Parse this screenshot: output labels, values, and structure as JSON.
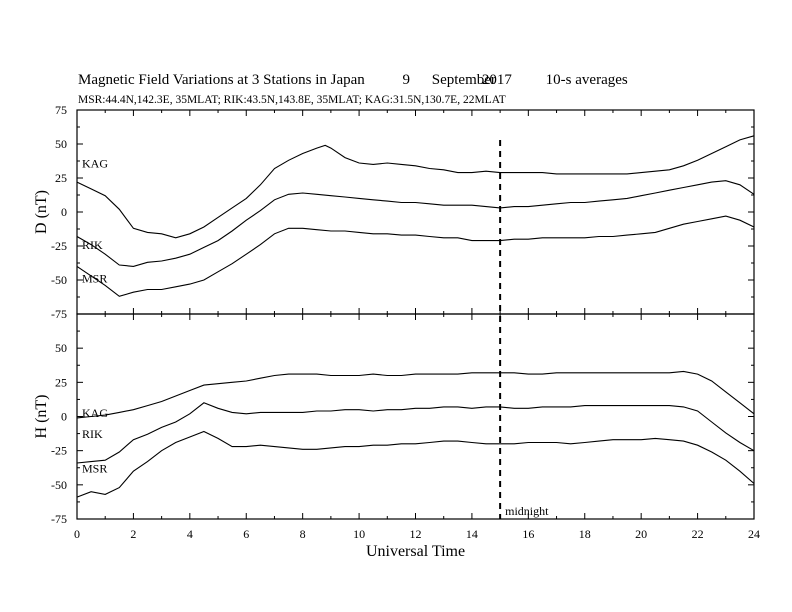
{
  "header": {
    "title_main": "Magnetic Field Variations at 3 Stations in Japan",
    "title_day": "9",
    "title_month": "September",
    "title_year": "2017",
    "title_avg": "10-s averages",
    "stations_line": "MSR:44.4N,142.3E, 35MLAT;  RIK:43.5N,143.8E, 35MLAT;  KAG:31.5N,130.7E, 22MLAT"
  },
  "chart_data": [
    {
      "type": "line",
      "ylabel": "D (nT)",
      "ylim": [
        -75,
        75
      ],
      "yticks": [
        "75",
        "50",
        "25",
        "0",
        "-25",
        "-50",
        "-75"
      ],
      "xlim": [
        0,
        24
      ],
      "series": [
        {
          "name": "KAG",
          "x": [
            0,
            0.5,
            1,
            1.5,
            2,
            2.5,
            3,
            3.5,
            4,
            4.5,
            5,
            5.5,
            6,
            6.5,
            7,
            7.5,
            8,
            8.5,
            8.8,
            9,
            9.5,
            10,
            10.5,
            11,
            11.5,
            12,
            12.5,
            13,
            13.5,
            14,
            14.5,
            15,
            15.5,
            16,
            16.5,
            17,
            17.5,
            18,
            18.5,
            19,
            19.5,
            20,
            20.5,
            21,
            21.5,
            22,
            22.5,
            23,
            23.5,
            24
          ],
          "values": [
            22,
            17,
            12,
            2,
            -12,
            -15,
            -16,
            -19,
            -16,
            -11,
            -4,
            3,
            10,
            20,
            32,
            38,
            43,
            47,
            49,
            47,
            40,
            36,
            35,
            36,
            35,
            34,
            32,
            31,
            29,
            29,
            30,
            29,
            29,
            29,
            29,
            28,
            28,
            28,
            28,
            28,
            28,
            29,
            30,
            31,
            34,
            38,
            43,
            48,
            53,
            56
          ]
        },
        {
          "name": "RIK",
          "x": [
            0,
            0.5,
            1,
            1.5,
            2,
            2.5,
            3,
            3.5,
            4,
            4.5,
            5,
            5.5,
            6,
            6.5,
            7,
            7.5,
            8,
            8.5,
            9,
            9.5,
            10,
            10.5,
            11,
            11.5,
            12,
            12.5,
            13,
            13.5,
            14,
            14.5,
            15,
            15.5,
            16,
            16.5,
            17,
            17.5,
            18,
            18.5,
            19,
            19.5,
            20,
            20.5,
            21,
            21.5,
            22,
            22.5,
            23,
            23.5,
            24
          ],
          "values": [
            -18,
            -24,
            -31,
            -39,
            -40,
            -37,
            -36,
            -34,
            -31,
            -26,
            -21,
            -14,
            -6,
            1,
            9,
            13,
            14,
            13,
            12,
            11,
            10,
            9,
            8,
            7,
            7,
            6,
            5,
            5,
            5,
            4,
            3,
            4,
            4,
            5,
            6,
            7,
            7,
            8,
            9,
            10,
            12,
            14,
            16,
            18,
            20,
            22,
            23,
            20,
            13
          ]
        },
        {
          "name": "MSR",
          "x": [
            0,
            0.5,
            1,
            1.5,
            2,
            2.5,
            3,
            3.5,
            4,
            4.5,
            5,
            5.5,
            6,
            6.5,
            7,
            7.5,
            8,
            8.5,
            9,
            9.5,
            10,
            10.5,
            11,
            11.5,
            12,
            12.5,
            13,
            13.5,
            14,
            14.5,
            15,
            15.5,
            16,
            16.5,
            17,
            17.5,
            18,
            18.5,
            19,
            19.5,
            20,
            20.5,
            21,
            21.5,
            22,
            22.5,
            23,
            23.5,
            24
          ],
          "values": [
            -40,
            -47,
            -54,
            -62,
            -59,
            -57,
            -57,
            -55,
            -53,
            -50,
            -44,
            -38,
            -31,
            -24,
            -16,
            -12,
            -12,
            -13,
            -14,
            -14,
            -15,
            -16,
            -16,
            -17,
            -17,
            -18,
            -19,
            -19,
            -21,
            -21,
            -21,
            -20,
            -20,
            -19,
            -19,
            -19,
            -19,
            -18,
            -18,
            -17,
            -16,
            -15,
            -12,
            -9,
            -7,
            -5,
            -3,
            -6,
            -11
          ]
        }
      ]
    },
    {
      "type": "line",
      "ylabel": "H (nT)",
      "ylim": [
        -75,
        75
      ],
      "yticks": [
        "75",
        "50",
        "25",
        "0",
        "-25",
        "-50",
        "-75"
      ],
      "xlim": [
        0,
        24
      ],
      "xlabel": "Universal Time",
      "xticks": [
        "0",
        "2",
        "4",
        "6",
        "8",
        "10",
        "12",
        "14",
        "16",
        "18",
        "20",
        "22",
        "24"
      ],
      "annotation": "midnight",
      "midnight_x": 15,
      "series": [
        {
          "name": "KAG",
          "x": [
            0,
            0.5,
            1,
            1.5,
            2,
            2.5,
            3,
            3.5,
            4,
            4.5,
            5,
            5.5,
            6,
            6.5,
            7,
            7.5,
            8,
            8.5,
            9,
            9.5,
            10,
            10.5,
            11,
            11.5,
            12,
            12.5,
            13,
            13.5,
            14,
            14.5,
            15,
            15.5,
            16,
            16.5,
            17,
            17.5,
            18,
            18.5,
            19,
            19.5,
            20,
            20.5,
            21,
            21.5,
            22,
            22.5,
            23,
            23.5,
            24
          ],
          "values": [
            -1,
            0,
            1,
            3,
            5,
            8,
            11,
            15,
            19,
            23,
            24,
            25,
            26,
            28,
            30,
            31,
            31,
            31,
            30,
            30,
            30,
            31,
            30,
            30,
            31,
            31,
            31,
            31,
            32,
            32,
            32,
            32,
            31,
            31,
            32,
            32,
            32,
            32,
            32,
            32,
            32,
            32,
            32,
            33,
            31,
            26,
            18,
            10,
            2
          ]
        },
        {
          "name": "RIK",
          "x": [
            0,
            0.5,
            1,
            1.5,
            2,
            2.5,
            3,
            3.5,
            4,
            4.5,
            5,
            5.5,
            6,
            6.5,
            7,
            7.5,
            8,
            8.5,
            9,
            9.5,
            10,
            10.5,
            11,
            11.5,
            12,
            12.5,
            13,
            13.5,
            14,
            14.5,
            15,
            15.5,
            16,
            16.5,
            17,
            17.5,
            18,
            18.5,
            19,
            19.5,
            20,
            20.5,
            21,
            21.5,
            22,
            22.5,
            23,
            23.5,
            24
          ],
          "values": [
            -34,
            -33,
            -32,
            -26,
            -17,
            -13,
            -8,
            -4,
            2,
            10,
            6,
            3,
            2,
            3,
            3,
            3,
            3,
            4,
            4,
            5,
            5,
            4,
            5,
            5,
            6,
            6,
            7,
            7,
            6,
            7,
            7,
            6,
            6,
            7,
            7,
            7,
            8,
            8,
            8,
            8,
            8,
            8,
            8,
            7,
            4,
            -4,
            -12,
            -19,
            -25
          ]
        },
        {
          "name": "MSR",
          "x": [
            0,
            0.5,
            1,
            1.5,
            2,
            2.5,
            3,
            3.5,
            4,
            4.5,
            5,
            5.5,
            6,
            6.5,
            7,
            7.5,
            8,
            8.5,
            9,
            9.5,
            10,
            10.5,
            11,
            11.5,
            12,
            12.5,
            13,
            13.5,
            14,
            14.5,
            15,
            15.5,
            16,
            16.5,
            17,
            17.5,
            18,
            18.5,
            19,
            19.5,
            20,
            20.5,
            21,
            21.5,
            22,
            22.5,
            23,
            23.5,
            24
          ],
          "values": [
            -59,
            -55,
            -57,
            -52,
            -40,
            -33,
            -25,
            -19,
            -15,
            -11,
            -16,
            -22,
            -22,
            -21,
            -22,
            -23,
            -24,
            -24,
            -23,
            -22,
            -22,
            -21,
            -21,
            -20,
            -20,
            -19,
            -18,
            -18,
            -19,
            -20,
            -20,
            -20,
            -19,
            -19,
            -19,
            -20,
            -19,
            -18,
            -17,
            -17,
            -17,
            -16,
            -17,
            -18,
            -21,
            -26,
            -32,
            -40,
            -49
          ]
        }
      ]
    }
  ]
}
